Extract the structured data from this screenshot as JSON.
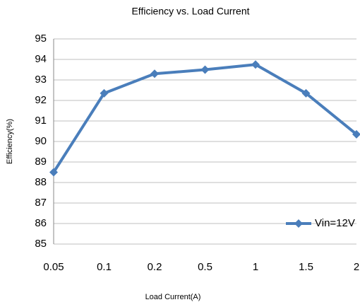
{
  "chart_data": {
    "type": "line",
    "title": "Efficiency vs. Load Current",
    "x_label": "Load Current(A)",
    "y_label": "Efficiency(%)",
    "categories": [
      "0.05",
      "0.1",
      "0.2",
      "0.5",
      "1",
      "1.5",
      "2"
    ],
    "series": [
      {
        "name": "Vin=12V",
        "color": "#4a7ebb",
        "values": [
          88.5,
          92.35,
          93.3,
          93.5,
          93.75,
          92.35,
          90.35
        ]
      }
    ],
    "ylim": [
      85,
      95
    ],
    "yticks": [
      85,
      86,
      87,
      88,
      89,
      90,
      91,
      92,
      93,
      94,
      95
    ],
    "grid": true,
    "legend": "lower right"
  }
}
